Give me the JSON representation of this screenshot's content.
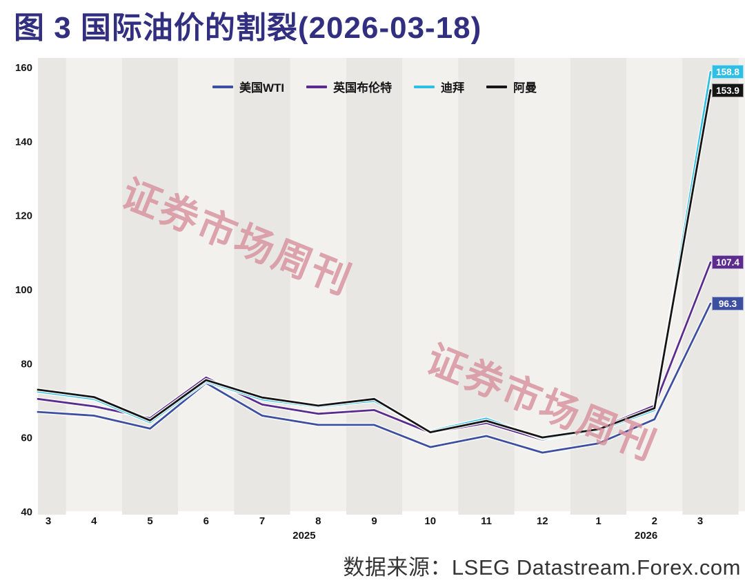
{
  "page": {
    "title": "图 3  国际油价的割裂(2026-03-18)",
    "source": "数据来源：LSEG  Datastream.Forex.com",
    "watermark": "证券市场周刊"
  },
  "colors": {
    "title": "#322f80",
    "band_dark": "#e8e7e3",
    "band_light": "#f2f1ee",
    "axis_text": "#141414",
    "watermark": "#d9909c"
  },
  "chart_data": {
    "type": "line",
    "title": "图 3  国际油价的割裂(2026-03-18)",
    "xlabel": "",
    "ylabel": "",
    "ylim": [
      40,
      160
    ],
    "y_ticks": [
      40,
      60,
      80,
      100,
      120,
      140,
      160
    ],
    "grid": "alternating-column-bands",
    "legend_position": "top",
    "categories": [
      "3",
      "4",
      "5",
      "6",
      "7",
      "8",
      "9",
      "10",
      "11",
      "12",
      "1",
      "2",
      "3"
    ],
    "x_year_labels": [
      {
        "label": "2025",
        "at_index": 4.75
      },
      {
        "label": "2026",
        "at_index": 10.85
      }
    ],
    "series": [
      {
        "name": "美国WTI",
        "color": "#3d4fa1",
        "end_label": "96.3",
        "values": [
          67,
          66,
          62.5,
          74.8,
          66,
          63.5,
          63.5,
          57.5,
          60.5,
          56,
          58.5,
          65,
          96.3
        ]
      },
      {
        "name": "英国布伦特",
        "color": "#5c2b8e",
        "end_label": "107.4",
        "values": [
          70.5,
          68.5,
          65.3,
          76.3,
          69,
          66.5,
          67.5,
          61.4,
          64,
          59.5,
          62.5,
          68.7,
          107.4
        ]
      },
      {
        "name": "迪拜",
        "color": "#2fbfe4",
        "end_label": "158.8",
        "values": [
          72.5,
          70.5,
          64.2,
          75.2,
          70.4,
          68.4,
          70,
          61.8,
          65.2,
          59.8,
          62,
          67.5,
          158.8
        ]
      },
      {
        "name": "阿曼",
        "color": "#151515",
        "end_label": "153.9",
        "values": [
          73,
          71,
          64.7,
          75.6,
          70.9,
          68.7,
          70.5,
          61.5,
          64.6,
          60.1,
          62.3,
          68,
          153.9
        ]
      }
    ]
  }
}
